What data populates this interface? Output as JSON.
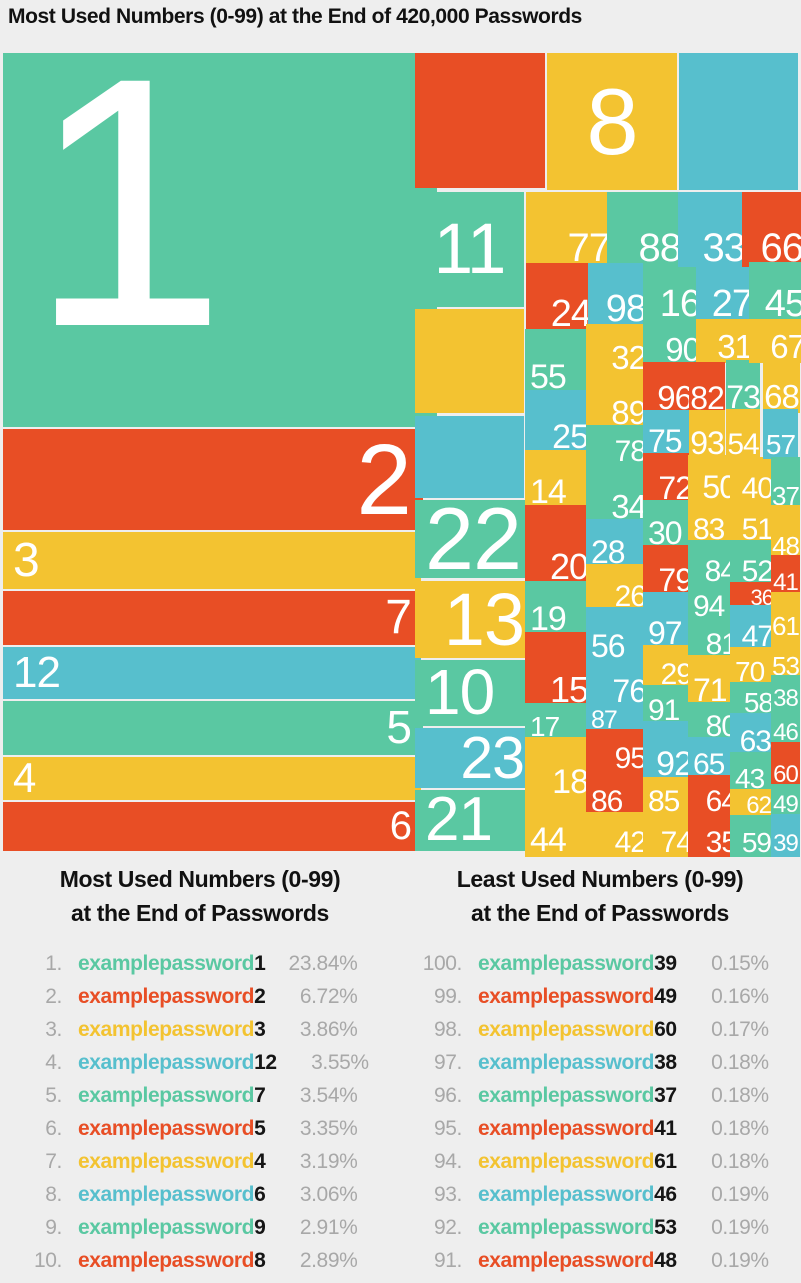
{
  "title": "Most Used Numbers (0-99) at the End of 420,000 Passwords",
  "palette": {
    "g": "#5ac8a2",
    "r": "#e84e25",
    "y": "#f3c331",
    "b": "#57bfcd",
    "background": "#eeeeee",
    "gray_text": "#a8a8a8",
    "black_text": "#151515",
    "label_white": "#ffffff"
  },
  "chart_data": {
    "type": "treemap",
    "title": "Most Used Numbers (0-99) at the End of 420,000 Passwords",
    "legend_position": "none",
    "cell_fields": [
      "label",
      "color",
      "x",
      "y",
      "w",
      "h",
      "font_size",
      "align"
    ],
    "cells": [
      [
        "1",
        "g",
        3,
        53,
        408,
        374,
        355,
        "tl"
      ],
      [
        "2",
        "r",
        3,
        429,
        408,
        101,
        100,
        "mr"
      ],
      [
        "3",
        "y",
        3,
        532,
        408,
        57,
        48,
        "ml"
      ],
      [
        "7",
        "r",
        3,
        591,
        408,
        54,
        48,
        "mr"
      ],
      [
        "12",
        "b",
        3,
        647,
        408,
        52,
        44,
        "ml"
      ],
      [
        "5",
        "g",
        3,
        701,
        408,
        54,
        46,
        "mr"
      ],
      [
        "4",
        "y",
        3,
        757,
        408,
        43,
        42,
        "ml"
      ],
      [
        "6",
        "r",
        3,
        802,
        408,
        49,
        40,
        "mr"
      ],
      [
        "",
        "r",
        415,
        53,
        130,
        135,
        0,
        "mc"
      ],
      [
        "8",
        "y",
        547,
        53,
        130,
        137,
        94,
        "mc"
      ],
      [
        "",
        "b",
        679,
        53,
        119,
        137,
        0,
        "mc"
      ],
      [
        "11",
        "g",
        415,
        192,
        109,
        115,
        71,
        "mc"
      ],
      [
        "",
        "y",
        415,
        309,
        109,
        104,
        0,
        "mc"
      ],
      [
        "",
        "b",
        415,
        416,
        109,
        82,
        0,
        "mc"
      ],
      [
        "22",
        "g",
        415,
        500,
        109,
        78,
        88,
        "ml"
      ],
      [
        "13",
        "y",
        415,
        581,
        109,
        77,
        74,
        "mr"
      ],
      [
        "10",
        "g",
        415,
        660,
        109,
        66,
        64,
        "ml"
      ],
      [
        "23",
        "b",
        415,
        728,
        109,
        60,
        59,
        "mr"
      ],
      [
        "21",
        "g",
        415,
        790,
        109,
        61,
        62,
        "ml"
      ],
      [
        "77",
        "y",
        526,
        192,
        79,
        69,
        40,
        "br"
      ],
      [
        "24",
        "r",
        526,
        263,
        60,
        64,
        38,
        "br"
      ],
      [
        "55",
        "g",
        525,
        329,
        58,
        59,
        34,
        "bl"
      ],
      [
        "25",
        "b",
        525,
        390,
        58,
        58,
        34,
        "br"
      ],
      [
        "14",
        "y",
        525,
        450,
        58,
        53,
        34,
        "bl"
      ],
      [
        "20",
        "r",
        525,
        505,
        58,
        73,
        36,
        "br"
      ],
      [
        "19",
        "g",
        525,
        581,
        58,
        49,
        34,
        "bl"
      ],
      [
        "15",
        "r",
        525,
        632,
        58,
        69,
        36,
        "br"
      ],
      [
        "17",
        "g",
        525,
        703,
        58,
        32,
        28,
        "bl"
      ],
      [
        "18",
        "y",
        525,
        737,
        58,
        56,
        34,
        "br"
      ],
      [
        "44",
        "y",
        525,
        795,
        58,
        56,
        34,
        "bl"
      ],
      [
        "88",
        "g",
        607,
        192,
        69,
        69,
        40,
        "br"
      ],
      [
        "98",
        "b",
        588,
        263,
        53,
        59,
        38,
        "br"
      ],
      [
        "32",
        "y",
        586,
        324,
        55,
        44,
        33,
        "br"
      ],
      [
        "89",
        "y",
        586,
        370,
        55,
        53,
        33,
        "br"
      ],
      [
        "78",
        "g",
        586,
        425,
        55,
        35,
        30,
        "br"
      ],
      [
        "34",
        "g",
        586,
        462,
        55,
        55,
        33,
        "br"
      ],
      [
        "28",
        "b",
        586,
        519,
        55,
        43,
        32,
        "bl"
      ],
      [
        "26",
        "y",
        586,
        564,
        55,
        41,
        30,
        "br"
      ],
      [
        "56",
        "b",
        586,
        607,
        55,
        49,
        32,
        "bl"
      ],
      [
        "76",
        "b",
        586,
        658,
        55,
        43,
        32,
        "br"
      ],
      [
        "87",
        "b",
        586,
        703,
        55,
        24,
        25,
        "bl"
      ],
      [
        "95",
        "r",
        586,
        729,
        55,
        38,
        30,
        "br"
      ],
      [
        "86",
        "r",
        586,
        769,
        55,
        41,
        30,
        "bl"
      ],
      [
        "42",
        "y",
        586,
        812,
        55,
        39,
        30,
        "br"
      ],
      [
        "16",
        "g",
        643,
        262,
        52,
        55,
        38,
        "br"
      ],
      [
        "90",
        "g",
        643,
        319,
        52,
        41,
        33,
        "br"
      ],
      [
        "96",
        "r",
        643,
        362,
        44,
        46,
        33,
        "br"
      ],
      [
        "75",
        "b",
        643,
        410,
        44,
        41,
        32,
        "bl"
      ],
      [
        "72",
        "r",
        643,
        453,
        44,
        45,
        32,
        "br"
      ],
      [
        "30",
        "g",
        643,
        500,
        44,
        43,
        32,
        "bl"
      ],
      [
        "79",
        "r",
        643,
        545,
        44,
        45,
        32,
        "br"
      ],
      [
        "97",
        "b",
        643,
        592,
        44,
        51,
        32,
        "bl"
      ],
      [
        "29",
        "y",
        643,
        645,
        44,
        38,
        30,
        "br"
      ],
      [
        "91",
        "g",
        643,
        685,
        44,
        34,
        30,
        "bl"
      ],
      [
        "92",
        "b",
        643,
        721,
        44,
        54,
        34,
        "br"
      ],
      [
        "85",
        "y",
        643,
        777,
        44,
        33,
        30,
        "bl"
      ],
      [
        "74",
        "y",
        643,
        812,
        44,
        39,
        30,
        "br"
      ],
      [
        "27",
        "b",
        696,
        262,
        51,
        55,
        38,
        "br"
      ],
      [
        "31",
        "y",
        696,
        319,
        51,
        38,
        33,
        "br"
      ],
      [
        "82",
        "r",
        689,
        362,
        36,
        46,
        32,
        "bc"
      ],
      [
        "93",
        "y",
        689,
        410,
        36,
        43,
        32,
        "bc"
      ],
      [
        "50",
        "y",
        688,
        455,
        43,
        42,
        32,
        "br"
      ],
      [
        "83",
        "y",
        688,
        500,
        43,
        38,
        30,
        "bl"
      ],
      [
        "84",
        "g",
        688,
        540,
        43,
        40,
        30,
        "br"
      ],
      [
        "94",
        "g",
        688,
        582,
        44,
        33,
        30,
        "bl"
      ],
      [
        "81",
        "g",
        688,
        617,
        44,
        36,
        30,
        "br"
      ],
      [
        "71",
        "y",
        688,
        655,
        44,
        45,
        32,
        "bl"
      ],
      [
        "80",
        "g",
        688,
        702,
        44,
        33,
        30,
        "br"
      ],
      [
        "65",
        "b",
        688,
        737,
        44,
        36,
        30,
        "bl"
      ],
      [
        "64",
        "r",
        688,
        775,
        44,
        35,
        30,
        "br"
      ],
      [
        "35",
        "r",
        688,
        812,
        44,
        39,
        30,
        "br"
      ],
      [
        "33",
        "b",
        678,
        192,
        62,
        69,
        40,
        "br"
      ],
      [
        "73",
        "g",
        726,
        360,
        34,
        47,
        32,
        "bc"
      ],
      [
        "54",
        "y",
        726,
        409,
        34,
        44,
        30,
        "bc"
      ],
      [
        "40",
        "y",
        730,
        457,
        38,
        40,
        30,
        "br"
      ],
      [
        "51",
        "y",
        730,
        499,
        38,
        39,
        30,
        "br"
      ],
      [
        "52",
        "g",
        730,
        540,
        38,
        40,
        30,
        "br"
      ],
      [
        "36",
        "r",
        730,
        582,
        38,
        21,
        22,
        "br"
      ],
      [
        "47",
        "b",
        730,
        605,
        38,
        40,
        30,
        "br"
      ],
      [
        "70",
        "y",
        730,
        647,
        38,
        33,
        28,
        "bl"
      ],
      [
        "58",
        "g",
        730,
        682,
        38,
        29,
        28,
        "br"
      ],
      [
        "63",
        "b",
        730,
        713,
        36,
        37,
        30,
        "br"
      ],
      [
        "43",
        "g",
        730,
        752,
        36,
        35,
        28,
        "bl"
      ],
      [
        "62",
        "y",
        730,
        789,
        36,
        24,
        24,
        "br"
      ],
      [
        "59",
        "g",
        730,
        815,
        36,
        36,
        28,
        "br"
      ],
      [
        "66",
        "r",
        742,
        192,
        56,
        69,
        40,
        "br"
      ],
      [
        "45",
        "g",
        749,
        262,
        51,
        55,
        38,
        "br"
      ],
      [
        "67",
        "y",
        749,
        319,
        51,
        38,
        33,
        "br"
      ],
      [
        "68",
        "y",
        763,
        360,
        37,
        47,
        33,
        "bc"
      ],
      [
        "57",
        "b",
        763,
        409,
        35,
        44,
        28,
        "bc"
      ],
      [
        "37",
        "g",
        771,
        457,
        29,
        46,
        26,
        "bc"
      ],
      [
        "48",
        "y",
        771,
        505,
        29,
        48,
        26,
        "bc"
      ],
      [
        "41",
        "r",
        771,
        555,
        29,
        35,
        24,
        "bc"
      ],
      [
        "61",
        "y",
        771,
        592,
        29,
        41,
        26,
        "bc"
      ],
      [
        "53",
        "y",
        771,
        635,
        29,
        38,
        26,
        "bc"
      ],
      [
        "38",
        "g",
        771,
        675,
        29,
        31,
        24,
        "bc"
      ],
      [
        "46",
        "g",
        771,
        708,
        29,
        32,
        24,
        "bc"
      ],
      [
        "60",
        "r",
        771,
        742,
        29,
        40,
        24,
        "bc"
      ],
      [
        "49",
        "g",
        771,
        784,
        29,
        28,
        24,
        "bc"
      ],
      [
        "39",
        "b",
        771,
        814,
        29,
        37,
        24,
        "bc"
      ]
    ]
  },
  "most_used": {
    "heading_line1": "Most Used Numbers (0-99)",
    "heading_line2": "at the End of Passwords",
    "rows": [
      {
        "rank": "1.",
        "prefix": "examplepassword",
        "number": "1",
        "percent": "23.84%",
        "color": "g"
      },
      {
        "rank": "2.",
        "prefix": "examplepassword",
        "number": "2",
        "percent": "6.72%",
        "color": "r"
      },
      {
        "rank": "3.",
        "prefix": "examplepassword",
        "number": "3",
        "percent": "3.86%",
        "color": "y"
      },
      {
        "rank": "4.",
        "prefix": "examplepassword",
        "number": "12",
        "percent": "3.55%",
        "color": "b"
      },
      {
        "rank": "5.",
        "prefix": "examplepassword",
        "number": "7",
        "percent": "3.54%",
        "color": "g"
      },
      {
        "rank": "6.",
        "prefix": "examplepassword",
        "number": "5",
        "percent": "3.35%",
        "color": "r"
      },
      {
        "rank": "7.",
        "prefix": "examplepassword",
        "number": "4",
        "percent": "3.19%",
        "color": "y"
      },
      {
        "rank": "8.",
        "prefix": "examplepassword",
        "number": "6",
        "percent": "3.06%",
        "color": "b"
      },
      {
        "rank": "9.",
        "prefix": "examplepassword",
        "number": "9",
        "percent": "2.91%",
        "color": "g"
      },
      {
        "rank": "10.",
        "prefix": "examplepassword",
        "number": "8",
        "percent": "2.89%",
        "color": "r"
      }
    ]
  },
  "least_used": {
    "heading_line1": "Least Used Numbers (0-99)",
    "heading_line2": "at the End of Passwords",
    "rows": [
      {
        "rank": "100.",
        "prefix": "examplepassword",
        "number": "39",
        "percent": "0.15%",
        "color": "g"
      },
      {
        "rank": "99.",
        "prefix": "examplepassword",
        "number": "49",
        "percent": "0.16%",
        "color": "r"
      },
      {
        "rank": "98.",
        "prefix": "examplepassword",
        "number": "60",
        "percent": "0.17%",
        "color": "y"
      },
      {
        "rank": "97.",
        "prefix": "examplepassword",
        "number": "38",
        "percent": "0.18%",
        "color": "b"
      },
      {
        "rank": "96.",
        "prefix": "examplepassword",
        "number": "37",
        "percent": "0.18%",
        "color": "g"
      },
      {
        "rank": "95.",
        "prefix": "examplepassword",
        "number": "41",
        "percent": "0.18%",
        "color": "r"
      },
      {
        "rank": "94.",
        "prefix": "examplepassword",
        "number": "61",
        "percent": "0.18%",
        "color": "y"
      },
      {
        "rank": "93.",
        "prefix": "examplepassword",
        "number": "46",
        "percent": "0.19%",
        "color": "b"
      },
      {
        "rank": "92.",
        "prefix": "examplepassword",
        "number": "53",
        "percent": "0.19%",
        "color": "g"
      },
      {
        "rank": "91.",
        "prefix": "examplepassword",
        "number": "48",
        "percent": "0.19%",
        "color": "r"
      }
    ]
  }
}
